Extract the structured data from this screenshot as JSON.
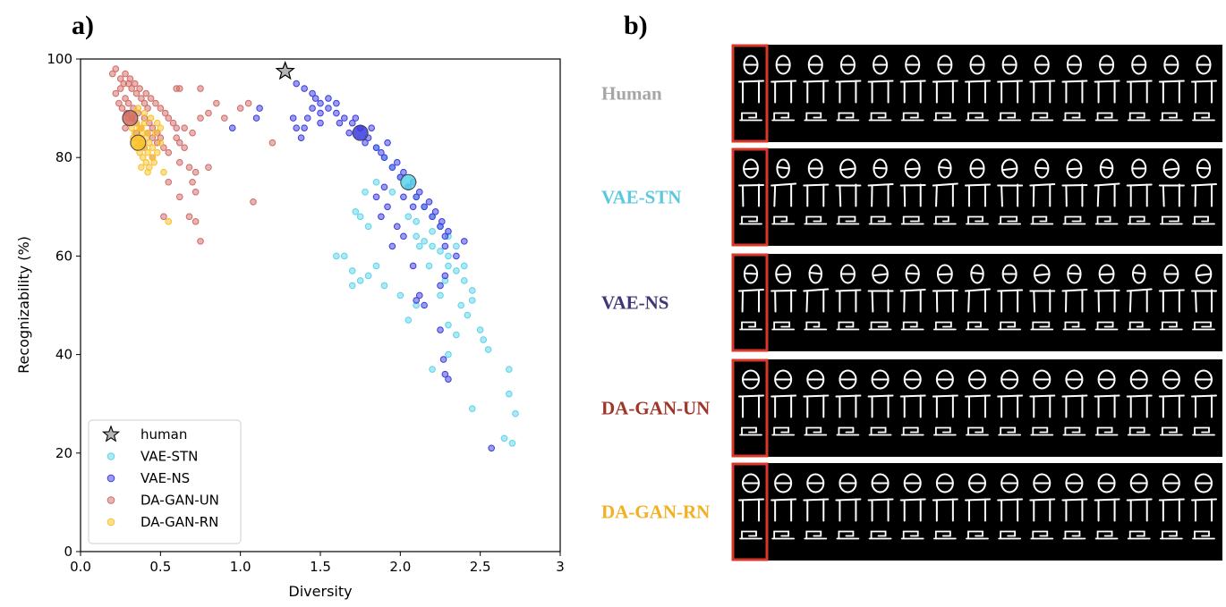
{
  "panel_a_label": "a)",
  "panel_b_label": "b)",
  "chart_data": {
    "type": "scatter",
    "xlabel": "Diversity",
    "ylabel": "Recognizability (%)",
    "xlim": [
      0,
      3
    ],
    "ylim": [
      0,
      100
    ],
    "x_ticks": [
      "0.0",
      "0.5",
      "1.0",
      "1.5",
      "2.0",
      "2.5",
      "3"
    ],
    "y_ticks": [
      "0",
      "20",
      "40",
      "60",
      "80",
      "100"
    ],
    "legend_position": "lower-left",
    "human_point": {
      "name": "human",
      "x": 1.28,
      "y": 97.5,
      "color": "#b5b5b5"
    },
    "series": [
      {
        "name": "VAE-STN",
        "color": "#5bd3ea",
        "mean": {
          "x": 2.05,
          "y": 75
        },
        "points": [
          [
            1.85,
            82
          ],
          [
            1.9,
            80
          ],
          [
            1.95,
            78
          ],
          [
            2.0,
            76
          ],
          [
            2.05,
            74
          ],
          [
            2.1,
            72
          ],
          [
            2.15,
            70
          ],
          [
            2.2,
            68
          ],
          [
            2.25,
            66
          ],
          [
            2.3,
            64
          ],
          [
            2.35,
            62
          ],
          [
            2.2,
            65
          ],
          [
            2.1,
            67
          ],
          [
            2.3,
            60
          ],
          [
            2.35,
            57
          ],
          [
            2.4,
            55
          ],
          [
            2.45,
            53
          ],
          [
            2.3,
            58
          ],
          [
            2.25,
            61
          ],
          [
            2.15,
            63
          ],
          [
            2.05,
            68
          ],
          [
            2.1,
            64
          ],
          [
            2.2,
            62
          ],
          [
            2.4,
            58
          ],
          [
            2.45,
            51
          ],
          [
            2.5,
            45
          ],
          [
            2.52,
            43
          ],
          [
            2.55,
            41
          ],
          [
            2.42,
            48
          ],
          [
            2.35,
            44
          ],
          [
            2.3,
            40
          ],
          [
            2.2,
            37
          ],
          [
            2.45,
            29
          ],
          [
            2.65,
            23
          ],
          [
            2.7,
            22
          ],
          [
            2.68,
            32
          ],
          [
            2.72,
            28
          ],
          [
            2.68,
            37
          ],
          [
            1.65,
            60
          ],
          [
            1.7,
            57
          ],
          [
            1.75,
            55
          ],
          [
            1.8,
            56
          ],
          [
            1.85,
            58
          ],
          [
            1.7,
            54
          ],
          [
            1.6,
            60
          ],
          [
            1.9,
            54
          ],
          [
            2.0,
            52
          ],
          [
            2.1,
            50
          ],
          [
            2.05,
            47
          ],
          [
            1.75,
            68
          ],
          [
            1.8,
            66
          ],
          [
            1.72,
            69
          ],
          [
            1.78,
            73
          ],
          [
            1.85,
            75
          ],
          [
            1.95,
            73
          ],
          [
            2.12,
            62
          ],
          [
            2.18,
            58
          ],
          [
            2.28,
            55
          ],
          [
            2.25,
            52
          ],
          [
            2.38,
            50
          ],
          [
            2.3,
            46
          ]
        ]
      },
      {
        "name": "VAE-NS",
        "color": "#3a3ae0",
        "mean": {
          "x": 1.75,
          "y": 85
        },
        "points": [
          [
            1.35,
            95
          ],
          [
            1.4,
            94
          ],
          [
            1.45,
            93
          ],
          [
            1.5,
            91
          ],
          [
            1.55,
            90
          ],
          [
            1.6,
            89
          ],
          [
            1.65,
            88
          ],
          [
            1.7,
            87
          ],
          [
            1.75,
            86
          ],
          [
            1.8,
            84
          ],
          [
            1.85,
            82
          ],
          [
            1.9,
            80
          ],
          [
            1.95,
            78
          ],
          [
            2.0,
            76
          ],
          [
            2.05,
            74
          ],
          [
            2.1,
            72
          ],
          [
            2.15,
            70
          ],
          [
            2.2,
            68
          ],
          [
            2.25,
            66
          ],
          [
            2.28,
            64
          ],
          [
            1.5,
            89
          ],
          [
            1.55,
            92
          ],
          [
            1.6,
            91
          ],
          [
            1.62,
            87
          ],
          [
            1.68,
            85
          ],
          [
            1.72,
            88
          ],
          [
            1.78,
            83
          ],
          [
            1.82,
            86
          ],
          [
            1.88,
            81
          ],
          [
            1.92,
            83
          ],
          [
            1.98,
            79
          ],
          [
            2.02,
            77
          ],
          [
            2.08,
            75
          ],
          [
            2.12,
            73
          ],
          [
            2.18,
            71
          ],
          [
            2.22,
            69
          ],
          [
            2.26,
            67
          ],
          [
            2.3,
            65
          ],
          [
            2.28,
            62
          ],
          [
            1.4,
            86
          ],
          [
            1.38,
            84
          ],
          [
            1.42,
            88
          ],
          [
            1.45,
            90
          ],
          [
            1.35,
            86
          ],
          [
            1.33,
            88
          ],
          [
            1.9,
            74
          ],
          [
            1.85,
            72
          ],
          [
            1.92,
            70
          ],
          [
            1.88,
            68
          ],
          [
            1.98,
            66
          ],
          [
            2.02,
            64
          ],
          [
            1.95,
            62
          ],
          [
            2.08,
            58
          ],
          [
            2.12,
            52
          ],
          [
            2.1,
            51
          ],
          [
            2.15,
            50
          ],
          [
            2.25,
            54
          ],
          [
            2.28,
            56
          ],
          [
            2.25,
            45
          ],
          [
            2.27,
            39
          ],
          [
            2.28,
            36
          ],
          [
            2.3,
            35
          ],
          [
            2.57,
            21
          ],
          [
            2.4,
            63
          ],
          [
            2.35,
            60
          ],
          [
            2.02,
            72
          ],
          [
            2.08,
            70
          ],
          [
            0.95,
            86
          ],
          [
            1.1,
            88
          ],
          [
            1.12,
            90
          ],
          [
            1.5,
            87
          ],
          [
            1.47,
            92
          ]
        ]
      },
      {
        "name": "DA-GAN-UN",
        "color": "#d06a66",
        "mean": {
          "x": 0.31,
          "y": 88
        },
        "points": [
          [
            0.2,
            97
          ],
          [
            0.22,
            98
          ],
          [
            0.25,
            96
          ],
          [
            0.28,
            97
          ],
          [
            0.3,
            95
          ],
          [
            0.32,
            94
          ],
          [
            0.35,
            93
          ],
          [
            0.38,
            92
          ],
          [
            0.4,
            91
          ],
          [
            0.42,
            90
          ],
          [
            0.25,
            94
          ],
          [
            0.28,
            92
          ],
          [
            0.3,
            91
          ],
          [
            0.33,
            90
          ],
          [
            0.36,
            89
          ],
          [
            0.4,
            88
          ],
          [
            0.43,
            87
          ],
          [
            0.45,
            86
          ],
          [
            0.48,
            85
          ],
          [
            0.5,
            84
          ],
          [
            0.27,
            95
          ],
          [
            0.31,
            96
          ],
          [
            0.34,
            95
          ],
          [
            0.37,
            94
          ],
          [
            0.41,
            93
          ],
          [
            0.44,
            92
          ],
          [
            0.47,
            91
          ],
          [
            0.5,
            90
          ],
          [
            0.53,
            89
          ],
          [
            0.55,
            88
          ],
          [
            0.58,
            87
          ],
          [
            0.6,
            86
          ],
          [
            0.22,
            93
          ],
          [
            0.24,
            91
          ],
          [
            0.26,
            90
          ],
          [
            0.29,
            89
          ],
          [
            0.32,
            88
          ],
          [
            0.35,
            87
          ],
          [
            0.38,
            86
          ],
          [
            0.42,
            85
          ],
          [
            0.45,
            84
          ],
          [
            0.48,
            83
          ],
          [
            0.52,
            82
          ],
          [
            0.55,
            81
          ],
          [
            0.6,
            84
          ],
          [
            0.62,
            83
          ],
          [
            0.65,
            82
          ],
          [
            0.6,
            94
          ],
          [
            0.62,
            94
          ],
          [
            0.75,
            94
          ],
          [
            0.85,
            91
          ],
          [
            1.0,
            90
          ],
          [
            1.05,
            91
          ],
          [
            1.2,
            83
          ],
          [
            0.75,
            88
          ],
          [
            0.8,
            89
          ],
          [
            0.9,
            88
          ],
          [
            0.65,
            86
          ],
          [
            0.7,
            85
          ],
          [
            0.62,
            79
          ],
          [
            0.68,
            78
          ],
          [
            0.72,
            77
          ],
          [
            0.8,
            78
          ],
          [
            0.7,
            75
          ],
          [
            0.72,
            73
          ],
          [
            0.62,
            72
          ],
          [
            0.52,
            68
          ],
          [
            0.68,
            68
          ],
          [
            0.72,
            67
          ],
          [
            0.75,
            63
          ],
          [
            0.55,
            75
          ],
          [
            1.08,
            71
          ],
          [
            0.35,
            85
          ],
          [
            0.28,
            86
          ],
          [
            0.4,
            82
          ],
          [
            0.45,
            80
          ]
        ]
      },
      {
        "name": "DA-GAN-RN",
        "color": "#f8c028",
        "mean": {
          "x": 0.36,
          "y": 83
        },
        "points": [
          [
            0.3,
            88
          ],
          [
            0.32,
            86
          ],
          [
            0.34,
            85
          ],
          [
            0.36,
            84
          ],
          [
            0.38,
            83
          ],
          [
            0.4,
            82
          ],
          [
            0.42,
            81
          ],
          [
            0.35,
            87
          ],
          [
            0.37,
            86
          ],
          [
            0.39,
            85
          ],
          [
            0.41,
            84
          ],
          [
            0.43,
            83
          ],
          [
            0.45,
            82
          ],
          [
            0.33,
            84
          ],
          [
            0.35,
            82
          ],
          [
            0.37,
            81
          ],
          [
            0.39,
            80
          ],
          [
            0.41,
            79
          ],
          [
            0.43,
            78
          ],
          [
            0.45,
            80
          ],
          [
            0.47,
            85
          ],
          [
            0.48,
            87
          ],
          [
            0.44,
            88
          ],
          [
            0.4,
            89
          ],
          [
            0.36,
            90
          ],
          [
            0.34,
            89
          ],
          [
            0.38,
            78
          ],
          [
            0.42,
            77
          ],
          [
            0.46,
            79
          ],
          [
            0.5,
            83
          ],
          [
            0.52,
            77
          ],
          [
            0.5,
            86
          ],
          [
            0.48,
            81
          ],
          [
            0.55,
            67
          ],
          [
            0.38,
            86
          ],
          [
            0.4,
            87
          ],
          [
            0.42,
            85
          ]
        ]
      }
    ]
  },
  "panel_b": {
    "rows": [
      {
        "label": "Human",
        "color": "#a6a6a6"
      },
      {
        "label": "VAE-STN",
        "color": "#5cc8e0"
      },
      {
        "label": "VAE-NS",
        "color": "#403777"
      },
      {
        "label": "DA-GAN-UN",
        "color": "#a0352a"
      },
      {
        "label": "DA-GAN-RN",
        "color": "#f2b022"
      }
    ],
    "columns_per_row": 15,
    "highlight_color": "#d9372a"
  }
}
